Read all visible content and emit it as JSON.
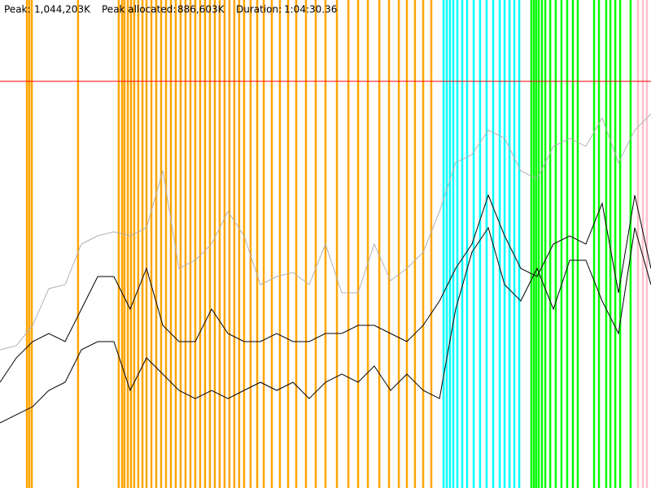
{
  "chart_data": {
    "type": "memory-timeline",
    "peak_caption": "Peak:",
    "peak": {
      "value": 1044203,
      "label": "1,044,203K"
    },
    "peak_allocated_caption": "Peak allocated:",
    "peak_allocated": "886,603K",
    "duration_caption": "Duration:",
    "duration": "1:04:30.36",
    "xlim": [
      0,
      3870.36
    ],
    "ylim": [
      0,
      1253040
    ],
    "peak_color": "#ff0000",
    "events": [
      {
        "color": "#ffa500",
        "x": [
          160,
          174,
          189,
          464,
          706,
          726,
          740,
          760,
          779,
          798,
          822,
          847,
          871,
          900,
          929,
          958,
          987,
          1016,
          1045,
          1074,
          1103,
          1132,
          1161,
          1190,
          1219,
          1248,
          1277,
          1306,
          1335,
          1364,
          1393,
          1422,
          1451,
          1490,
          1529,
          1568,
          1616,
          1664,
          1713,
          1761,
          1819,
          1877,
          1935,
          2003,
          2071,
          2129,
          2187,
          2255,
          2313,
          2371,
          2419,
          2467,
          2516,
          2564
        ]
      },
      {
        "color": "#00ffff",
        "x": [
          2637,
          2656,
          2675,
          2695,
          2719,
          2748,
          2777,
          2816,
          2854,
          2893,
          2932,
          2971,
          3000,
          3029,
          3058,
          3087
        ]
      },
      {
        "color": "#00ff00",
        "x": [
          3159,
          3174,
          3188,
          3203,
          3222,
          3242,
          3271,
          3304,
          3338,
          3372,
          3406,
          3435,
          3532,
          3561,
          3604,
          3629,
          3658,
          3687,
          3749
        ]
      },
      {
        "color": "#ffc0cb",
        "x": [
          3793,
          3822,
          3846
        ]
      }
    ],
    "x": [
      0,
      97,
      194,
      290,
      387,
      484,
      581,
      677,
      774,
      871,
      968,
      1064,
      1161,
      1258,
      1355,
      1451,
      1548,
      1645,
      1742,
      1838,
      1935,
      2032,
      2129,
      2225,
      2322,
      2419,
      2516,
      2613,
      2709,
      2806,
      2903,
      3000,
      3096,
      3193,
      3290,
      3387,
      3483,
      3580,
      3677,
      3774,
      3870
    ],
    "series": [
      {
        "color": "#b0b0b0",
        "values": [
          355000,
          365500,
          417700,
          511700,
          522100,
          626500,
          647400,
          657800,
          647400,
          668300,
          814500,
          563900,
          584800,
          626500,
          710100,
          647400,
          522100,
          543000,
          553400,
          522100,
          626500,
          501200,
          501200,
          626500,
          532500,
          563900,
          605600,
          710100,
          835400,
          856200,
          918900,
          898000,
          814500,
          793600,
          877100,
          898000,
          877100,
          950200,
          835400,
          918900,
          960700
        ]
      },
      {
        "color": "#000000",
        "values": [
          271500,
          334100,
          375900,
          396800,
          375900,
          459400,
          543000,
          543000,
          459400,
          563900,
          417700,
          375900,
          375900,
          459400,
          396800,
          375900,
          375900,
          396800,
          375900,
          375900,
          396800,
          396800,
          417700,
          417700,
          396800,
          375900,
          417700,
          480300,
          563900,
          626500,
          751800,
          647400,
          563900,
          543000,
          626500,
          647400,
          626500,
          730900,
          501200,
          751800,
          563900
        ]
      },
      {
        "color": "#000000",
        "values": [
          167100,
          188000,
          208800,
          250600,
          271500,
          355000,
          375900,
          375900,
          250600,
          334100,
          292400,
          250600,
          229700,
          250600,
          229700,
          250600,
          271500,
          250600,
          271500,
          229700,
          271500,
          292400,
          271500,
          313300,
          250600,
          292400,
          250600,
          229700,
          459400,
          605600,
          668300,
          522100,
          480300,
          563900,
          459400,
          584800,
          584800,
          480300,
          396800,
          668300,
          522100
        ]
      }
    ]
  }
}
